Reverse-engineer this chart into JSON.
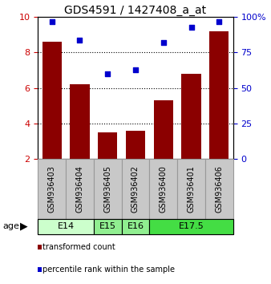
{
  "title": "GDS4591 / 1427408_a_at",
  "samples": [
    "GSM936403",
    "GSM936404",
    "GSM936405",
    "GSM936402",
    "GSM936400",
    "GSM936401",
    "GSM936406"
  ],
  "bar_values": [
    8.6,
    6.2,
    3.5,
    3.6,
    5.3,
    6.8,
    9.2
  ],
  "percentile_values": [
    97,
    84,
    60,
    63,
    82,
    93,
    97
  ],
  "ylim_left": [
    2,
    10
  ],
  "ylim_right": [
    0,
    100
  ],
  "yticks_left": [
    2,
    4,
    6,
    8,
    10
  ],
  "yticks_right": [
    0,
    25,
    50,
    75,
    100
  ],
  "bar_color": "#8B0000",
  "scatter_color": "#0000CD",
  "age_groups": [
    {
      "label": "E14",
      "start": 0,
      "end": 2,
      "color": "#ccffcc"
    },
    {
      "label": "E15",
      "start": 2,
      "end": 3,
      "color": "#90EE90"
    },
    {
      "label": "E16",
      "start": 3,
      "end": 4,
      "color": "#90EE90"
    },
    {
      "label": "E17.5",
      "start": 4,
      "end": 7,
      "color": "#44DD44"
    }
  ],
  "legend_bar_label": "transformed count",
  "legend_scatter_label": "percentile rank within the sample",
  "ylabel_left_color": "#CC0000",
  "ylabel_right_color": "#0000CC",
  "grid_color": "#000000",
  "title_fontsize": 10,
  "tick_fontsize": 8,
  "sample_fontsize": 7,
  "sample_box_color": "#C8C8C8",
  "sample_box_edge_color": "#999999"
}
